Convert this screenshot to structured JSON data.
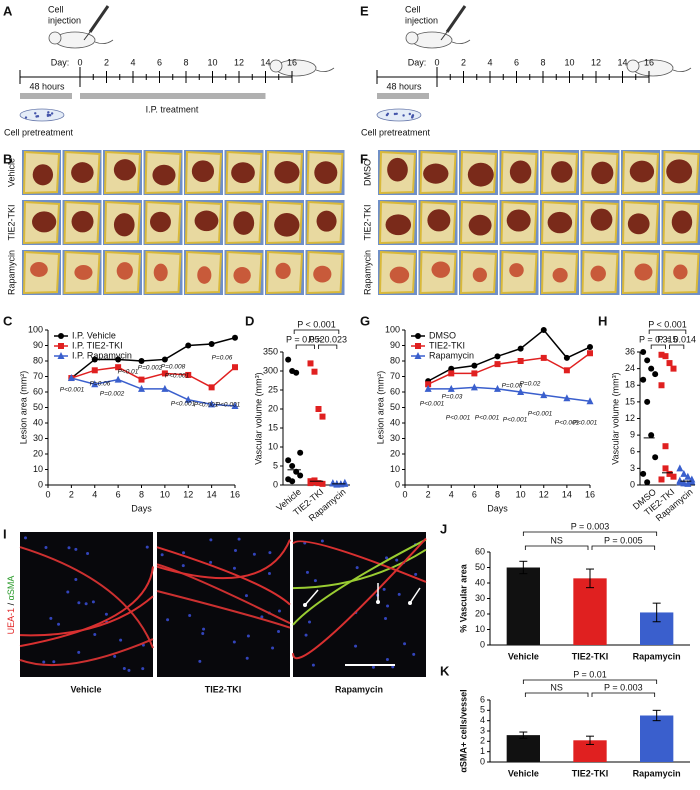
{
  "panel_labels": [
    "A",
    "B",
    "C",
    "D",
    "E",
    "F",
    "G",
    "H",
    "I",
    "J",
    "K"
  ],
  "timelines": [
    {
      "injection": [
        "Cell",
        "injection"
      ],
      "day_label": "Day:",
      "days": [
        0,
        2,
        4,
        6,
        8,
        10,
        12,
        14,
        16
      ],
      "pretreat_duration": "48 hours",
      "treatment": "I.P. treatment",
      "pretreatment": "Cell pretreatment"
    },
    {
      "injection": [
        "Cell",
        "injection"
      ],
      "day_label": "Day:",
      "days": [
        0,
        2,
        4,
        6,
        8,
        10,
        12,
        14,
        16
      ],
      "pretreat_duration": "48 hours",
      "pretreatment": "Cell pretreatment"
    }
  ],
  "photo_grids": [
    {
      "rows": [
        "Vehicle",
        "TIE2-TKI",
        "Rapamycin"
      ]
    },
    {
      "rows": [
        "DMSO",
        "TIE2-TKI",
        "Rapamycin"
      ]
    }
  ],
  "micrographs": {
    "stain": [
      "UEA-1",
      " / ",
      "αSMA"
    ],
    "captions": [
      "Vehicle",
      "TIE2-TKI",
      "Rapamycin"
    ]
  },
  "chart_data": [
    {
      "type": "line",
      "x_label": "Days",
      "y_label": "Lesion area (mm²)",
      "x": [
        2,
        4,
        6,
        8,
        10,
        12,
        14,
        16
      ],
      "series": [
        {
          "name": "I.P. Vehicle",
          "color": "#000000",
          "marker": "circle",
          "values": [
            69,
            81,
            81,
            80,
            81,
            90,
            91,
            95
          ]
        },
        {
          "name": "I.P. TIE2-TKI",
          "color": "#e02020",
          "marker": "square",
          "values": [
            69,
            74,
            76,
            68,
            72,
            71,
            63,
            76
          ]
        },
        {
          "name": "I.P. Rapamycin",
          "color": "#3a5fcd",
          "marker": "triangle",
          "values": [
            69,
            65,
            68,
            62,
            62,
            55,
            52,
            51
          ]
        }
      ],
      "xlim": [
        0,
        16
      ],
      "xticks": [
        0,
        2,
        4,
        6,
        8,
        10,
        12,
        14,
        16
      ],
      "ylim": [
        0,
        100
      ],
      "yticks": [
        0,
        10,
        20,
        30,
        40,
        50,
        60,
        70,
        80,
        90,
        100
      ],
      "legend": "upper left",
      "annotations": [
        "P<0.001",
        "P=0.06",
        "P<0.01",
        "P=0.002",
        "P=0.002",
        "P=0.008",
        "P<0.001",
        "P=0.06",
        "P<0.001",
        "P<0.001",
        "P<0.001"
      ]
    },
    {
      "type": "strip",
      "y_label": "Vascular volume (mm³)",
      "categories": [
        "Vehicle",
        "TIE2-TKI",
        "Rapamycin"
      ],
      "colors": [
        "#000000",
        "#e02020",
        "#3a5fcd"
      ],
      "markers": [
        "circle",
        "square",
        "triangle"
      ],
      "values": [
        [
          330,
          300,
          275,
          8.5,
          6.5,
          5,
          3.5,
          2.5,
          1.5,
          1
        ],
        [
          320,
          290,
          20,
          18,
          1,
          0.8,
          0.5,
          0.3,
          0.5,
          1.2
        ],
        [
          0.5,
          0.3,
          0.2,
          0.6,
          0.4,
          0.1,
          0.2,
          0.3
        ]
      ],
      "medians": [
        4,
        1,
        0.3
      ],
      "ylim": [
        0,
        350
      ],
      "yticks": [
        0,
        5,
        10,
        15,
        20,
        25,
        300,
        350
      ],
      "y_scale": "piecewise",
      "brackets": [
        "P < 0.001",
        "P = 0.052",
        "P = 0.023"
      ]
    },
    {
      "type": "line",
      "x_label": "Days",
      "y_label": "Lesion area (mm²)",
      "x": [
        2,
        4,
        6,
        8,
        10,
        12,
        14,
        16
      ],
      "series": [
        {
          "name": "DMSO",
          "color": "#000000",
          "marker": "circle",
          "values": [
            67,
            75,
            77,
            83,
            88,
            100,
            82,
            89
          ]
        },
        {
          "name": "TIE2-TKI",
          "color": "#e02020",
          "marker": "square",
          "values": [
            65,
            72,
            72,
            78,
            80,
            82,
            74,
            85
          ]
        },
        {
          "name": "Rapamycin",
          "color": "#3a5fcd",
          "marker": "triangle",
          "values": [
            62,
            62,
            63,
            62,
            60,
            58,
            56,
            54
          ]
        }
      ],
      "xlim": [
        0,
        16
      ],
      "xticks": [
        0,
        2,
        4,
        6,
        8,
        10,
        12,
        14,
        16
      ],
      "ylim": [
        0,
        100
      ],
      "yticks": [
        0,
        10,
        20,
        30,
        40,
        50,
        60,
        70,
        80,
        90,
        100
      ],
      "legend": "upper left",
      "annotations": [
        "P<0.001",
        "P=0.03",
        "P<0.001",
        "P<0.001",
        "P=0.08",
        "P=0.02",
        "P<0.001",
        "P<0.001",
        "P<0.001",
        "P<0.001"
      ]
    },
    {
      "type": "strip",
      "y_label": "Vascular volume (mm³)",
      "categories": [
        "DMSO",
        "TIE2-TKI",
        "Rapamycin"
      ],
      "colors": [
        "#000000",
        "#e02020",
        "#3a5fcd"
      ],
      "markers": [
        "circle",
        "square",
        "triangle"
      ],
      "values": [
        [
          36,
          30,
          24,
          22,
          20,
          15,
          9,
          5,
          2,
          0.5
        ],
        [
          34,
          33,
          28,
          24,
          18,
          7,
          2,
          1.5,
          1,
          3
        ],
        [
          3,
          2,
          1.5,
          1,
          0.5,
          0.3,
          0.2,
          0.6,
          0.8,
          0.4
        ]
      ],
      "medians": [
        8.5,
        2.2,
        0.7
      ],
      "ylim": [
        0,
        36
      ],
      "yticks": [
        0,
        3,
        6,
        9,
        12,
        15,
        18,
        24,
        36
      ],
      "y_scale": "piecewise",
      "brackets": [
        "P < 0.001",
        "P = 0.315",
        "P = 0.014"
      ]
    },
    {
      "type": "bar",
      "y_label": "% Vascular area",
      "categories": [
        "Vehicle",
        "TIE2-TKI",
        "Rapamycin"
      ],
      "colors": [
        "#111111",
        "#e02020",
        "#3a5fcd"
      ],
      "values": [
        50,
        43,
        21
      ],
      "errors": [
        4,
        6,
        6
      ],
      "ylim": [
        0,
        60
      ],
      "yticks": [
        0,
        10,
        20,
        30,
        40,
        50,
        60
      ],
      "brackets": [
        "P = 0.003",
        "NS",
        "P = 0.005"
      ]
    },
    {
      "type": "bar",
      "y_label": "αSMA+ cells/vessel",
      "categories": [
        "Vehicle",
        "TIE2-TKI",
        "Rapamycin"
      ],
      "colors": [
        "#111111",
        "#e02020",
        "#3a5fcd"
      ],
      "values": [
        2.6,
        2.1,
        4.5
      ],
      "errors": [
        0.3,
        0.4,
        0.5
      ],
      "ylim": [
        0,
        6
      ],
      "yticks": [
        0,
        1,
        2,
        3,
        4,
        5,
        6
      ],
      "brackets": [
        "P = 0.01",
        "NS",
        "P = 0.003"
      ]
    }
  ]
}
